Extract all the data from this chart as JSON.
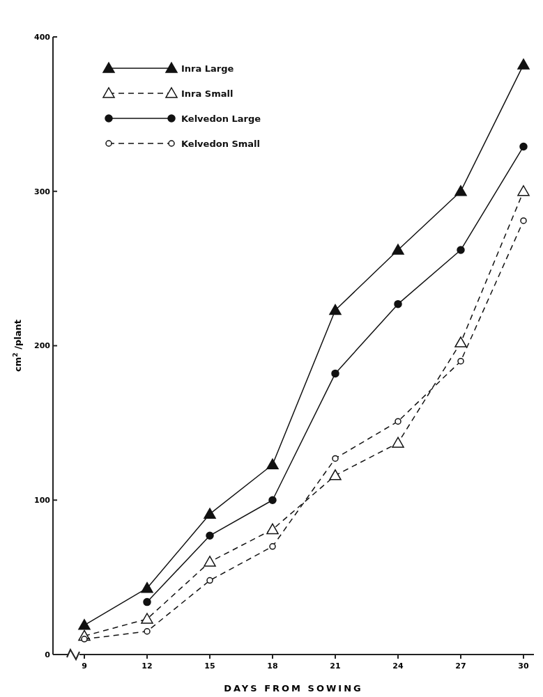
{
  "chart_data": {
    "type": "line",
    "xlabel": "DAYS FROM SOWING",
    "ylabel": "cm$^{2}$ /plant",
    "x": [
      9,
      12,
      15,
      18,
      21,
      24,
      27,
      30
    ],
    "xlim": [
      7.5,
      30.5
    ],
    "xticks": [
      9,
      12,
      15,
      18,
      21,
      24,
      27,
      30
    ],
    "ylim": [
      0,
      400
    ],
    "yticks": [
      0,
      100,
      200,
      300,
      400
    ],
    "grid": false,
    "legend": "top left",
    "series": [
      {
        "name": "Inra Large",
        "color": "#111111",
        "marker": "triangle",
        "line_style": "solid",
        "values": [
          19,
          43,
          91,
          123,
          223,
          262,
          300,
          382
        ]
      },
      {
        "name": "Inra Small",
        "color": "#111111",
        "marker": "triangle",
        "line_style": "dashed",
        "values": [
          12,
          23,
          60,
          81,
          116,
          137,
          202,
          300
        ]
      },
      {
        "name": "Kelvedon Large",
        "color": "#111111",
        "marker": "circle",
        "line_style": "solid",
        "values": [
          null,
          34,
          77,
          100,
          182,
          227,
          262,
          329
        ]
      },
      {
        "name": "Kelvedon Small",
        "color": "#111111",
        "marker": "circle",
        "line_style": "dashed",
        "values": [
          10,
          15,
          48,
          70,
          127,
          151,
          190,
          281
        ]
      }
    ]
  }
}
